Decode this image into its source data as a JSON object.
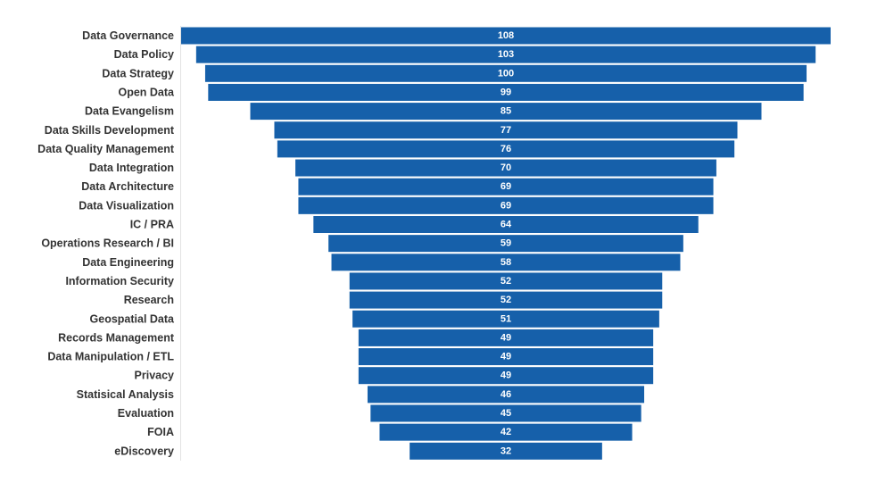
{
  "chart_data": {
    "type": "bar",
    "subtype": "funnel",
    "orientation": "horizontal",
    "title": "",
    "xlabel": "",
    "ylabel": "",
    "grid": false,
    "legend": "none",
    "bar_color": "#1660aa",
    "value_label_color": "#ffffff",
    "category_label_color": "#333333",
    "xlim": [
      0,
      108
    ],
    "categories": [
      "Data Governance",
      "Data Policy",
      "Data Strategy",
      "Open Data",
      "Data Evangelism",
      "Data Skills Development",
      "Data Quality Management",
      "Data Integration",
      "Data Architecture",
      "Data Visualization",
      "IC / PRA",
      "Operations Research / BI",
      "Data Engineering",
      "Information Security",
      "Research",
      "Geospatial Data",
      "Records Management",
      "Data Manipulation / ETL",
      "Privacy",
      "Statisical Analysis",
      "Evaluation",
      "FOIA",
      "eDiscovery"
    ],
    "values": [
      108,
      103,
      100,
      99,
      85,
      77,
      76,
      70,
      69,
      69,
      64,
      59,
      58,
      52,
      52,
      51,
      49,
      49,
      49,
      46,
      45,
      42,
      32
    ]
  }
}
